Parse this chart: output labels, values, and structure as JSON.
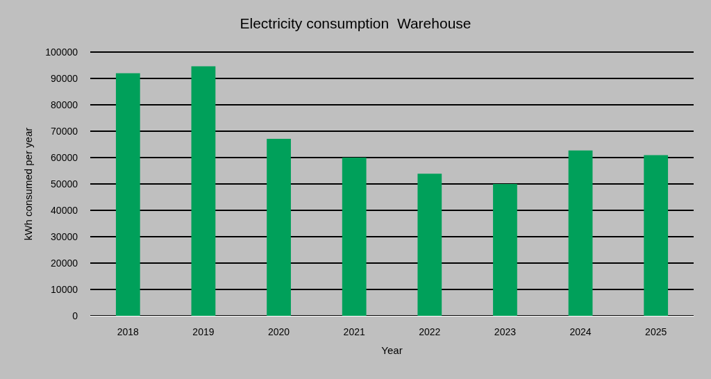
{
  "chart_data": {
    "type": "bar",
    "title": "Electricity consumption  Warehouse",
    "xlabel": "Year",
    "ylabel": "kWh consumed per year",
    "categories": [
      "2018",
      "2019",
      "2020",
      "2021",
      "2022",
      "2023",
      "2024",
      "2025"
    ],
    "values": [
      92000,
      94600,
      67100,
      60000,
      53900,
      50000,
      62700,
      60900
    ],
    "color": "#00a05a",
    "ylim": [
      0,
      100000
    ],
    "yticks": [
      0,
      10000,
      20000,
      30000,
      40000,
      50000,
      60000,
      70000,
      80000,
      90000,
      100000
    ],
    "grid": "y"
  }
}
